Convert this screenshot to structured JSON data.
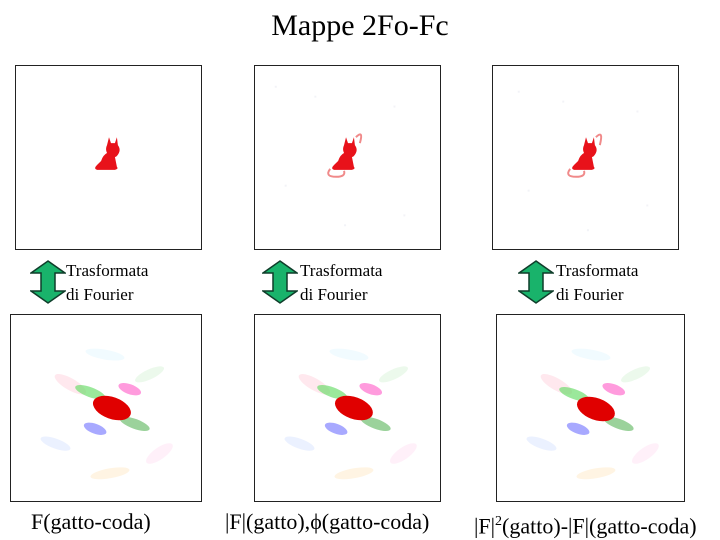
{
  "title": "Mappe 2Fo-Fc",
  "transform_label_line1": "Trasformata",
  "transform_label_line2": "di Fourier",
  "captions": {
    "c1": "F(gatto-coda)",
    "c2_prefix": "|F|(gatto),",
    "c2_phi": "ϕ",
    "c2_suffix": "(gatto-coda)",
    "c3_prefix": "|F|",
    "c3_sup": "2",
    "c3_suffix": "(gatto)-|F|(gatto-coda)"
  },
  "colors": {
    "cat": "#e8121a",
    "ghost_tail": "#f08a8a",
    "arrow_fill": "#19b36b",
    "arrow_stroke": "#0f3d2a"
  }
}
